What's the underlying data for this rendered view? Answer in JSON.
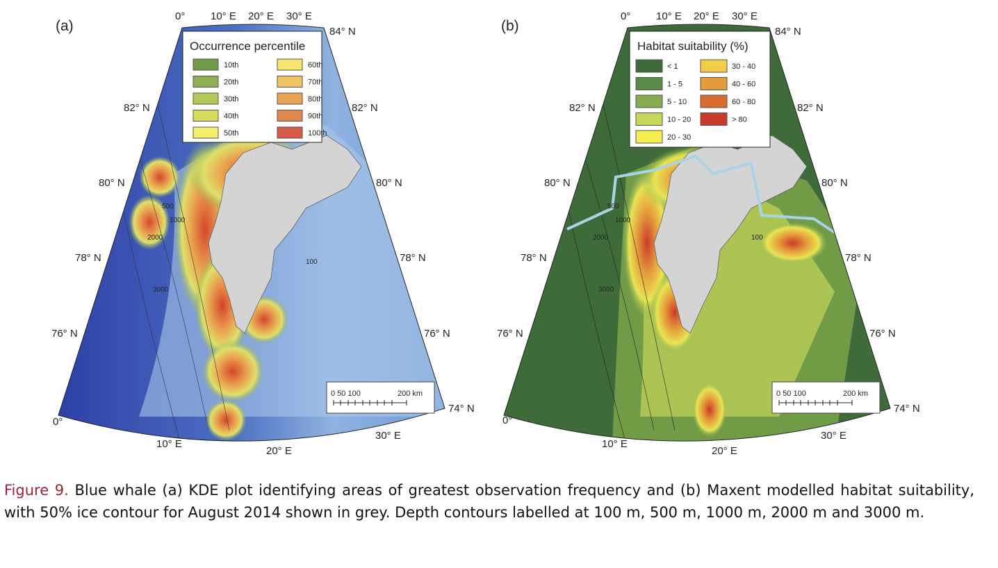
{
  "panels": [
    {
      "label": "(a)",
      "legend": {
        "title": "Occurrence percentile",
        "items": [
          {
            "label": "10th",
            "color": "#6f9a4c"
          },
          {
            "label": "20th",
            "color": "#8fb052"
          },
          {
            "label": "30th",
            "color": "#b3c955"
          },
          {
            "label": "40th",
            "color": "#d6dd5c"
          },
          {
            "label": "50th",
            "color": "#f4ee6a"
          },
          {
            "label": "60th",
            "color": "#f6e66e"
          },
          {
            "label": "70th",
            "color": "#efc462"
          },
          {
            "label": "80th",
            "color": "#e9a457"
          },
          {
            "label": "90th",
            "color": "#e2874f"
          },
          {
            "label": "100th",
            "color": "#d65a47"
          }
        ]
      }
    },
    {
      "label": "(b)",
      "legend": {
        "title": "Habitat suitability (%)",
        "items": [
          {
            "label": "< 1",
            "color": "#3f6b3a"
          },
          {
            "label": "1 - 5",
            "color": "#5a8a48"
          },
          {
            "label": "5 - 10",
            "color": "#85ac50"
          },
          {
            "label": "10 - 20",
            "color": "#c5d65a"
          },
          {
            "label": "20 - 30",
            "color": "#f5ee4e"
          },
          {
            "label": "30 - 40",
            "color": "#f1cd48"
          },
          {
            "label": "40 - 60",
            "color": "#e59a3c"
          },
          {
            "label": "60 - 80",
            "color": "#d96a30"
          },
          {
            "label": "> 80",
            "color": "#c93a2a"
          }
        ]
      }
    }
  ],
  "axes": {
    "top": [
      "0°",
      "10° E",
      "20° E",
      "30° E"
    ],
    "right": [
      "84° N",
      "82° N",
      "80° N",
      "78° N",
      "76° N",
      "74° N"
    ],
    "left": [
      "82° N",
      "80° N",
      "78° N",
      "76° N"
    ],
    "bottom": [
      "0°",
      "10° E",
      "20° E",
      "30° E"
    ]
  },
  "scale_bar": {
    "ticks": "0   50 100",
    "end": "200 km"
  },
  "contour_labels": [
    "500",
    "1000",
    "2000",
    "3000",
    "100"
  ],
  "caption": {
    "figure": "Figure 9.",
    "text": " Blue whale (a) KDE plot identifying areas of greatest observation frequency and (b) Maxent modelled habitat suitability, with 50% ice contour for August 2014 shown in grey. Depth contours labelled at 100 m, 500 m, 1000 m, 2000 m and 3000 m."
  }
}
